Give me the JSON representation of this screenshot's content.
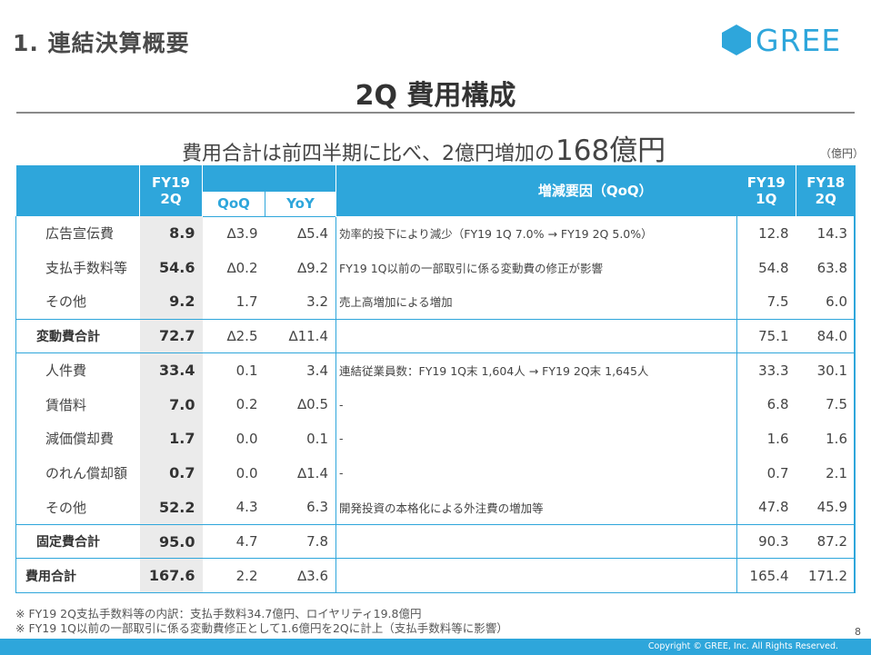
{
  "header": {
    "section_title": "1. 連結決算概要",
    "logo_text": "GREE",
    "page_title": "2Q 費用構成"
  },
  "subtitle": {
    "lead": "費用合計は前四半期に比べ、2億円増加の",
    "value": "168億円"
  },
  "unit": "（億円）",
  "table": {
    "headers": {
      "fy": "FY19\n2Q",
      "qoq": "QoQ",
      "yoy": "YoY",
      "reason": "増減要因（QoQ）",
      "fy19_1q": "FY19\n1Q",
      "fy18_2q": "FY18\n2Q"
    },
    "rows": [
      {
        "kind": "item",
        "label": "広告宣伝費",
        "fy19_2q": "8.9",
        "qoq": "∆3.9",
        "yoy": "∆5.4",
        "reason": "効率的投下により減少（FY19 1Q 7.0% → FY19 2Q 5.0%）",
        "fy19_1q": "12.8",
        "fy18_2q": "14.3"
      },
      {
        "kind": "item",
        "label": "支払手数料等",
        "fy19_2q": "54.6",
        "qoq": "∆0.2",
        "yoy": "∆9.2",
        "reason": "FY19 1Q以前の一部取引に係る変動費の修正が影響",
        "fy19_1q": "54.8",
        "fy18_2q": "63.8"
      },
      {
        "kind": "item",
        "label": "その他",
        "fy19_2q": "9.2",
        "qoq": "1.7",
        "yoy": "3.2",
        "reason": "売上高増加による増加",
        "fy19_1q": "7.5",
        "fy18_2q": "6.0"
      },
      {
        "kind": "subtotal",
        "label": "変動費合計",
        "fy19_2q": "72.7",
        "qoq": "∆2.5",
        "yoy": "∆11.4",
        "reason": "",
        "fy19_1q": "75.1",
        "fy18_2q": "84.0"
      },
      {
        "kind": "item",
        "label": "人件費",
        "fy19_2q": "33.4",
        "qoq": "0.1",
        "yoy": "3.4",
        "reason": "連結従業員数：FY19 1Q末 1,604人 → FY19 2Q末 1,645人",
        "fy19_1q": "33.3",
        "fy18_2q": "30.1"
      },
      {
        "kind": "item",
        "label": "賃借料",
        "fy19_2q": "7.0",
        "qoq": "0.2",
        "yoy": "∆0.5",
        "reason": "-",
        "fy19_1q": "6.8",
        "fy18_2q": "7.5"
      },
      {
        "kind": "item",
        "label": "減価償却費",
        "fy19_2q": "1.7",
        "qoq": "0.0",
        "yoy": "0.1",
        "reason": "-",
        "fy19_1q": "1.6",
        "fy18_2q": "1.6"
      },
      {
        "kind": "item",
        "label": "のれん償却額",
        "fy19_2q": "0.7",
        "qoq": "0.0",
        "yoy": "∆1.4",
        "reason": "-",
        "fy19_1q": "0.7",
        "fy18_2q": "2.1"
      },
      {
        "kind": "item",
        "label": "その他",
        "fy19_2q": "52.2",
        "qoq": "4.3",
        "yoy": "6.3",
        "reason": "開発投資の本格化による外注費の増加等",
        "fy19_1q": "47.8",
        "fy18_2q": "45.9"
      },
      {
        "kind": "subtotal",
        "label": "固定費合計",
        "fy19_2q": "95.0",
        "qoq": "4.7",
        "yoy": "7.8",
        "reason": "",
        "fy19_1q": "90.3",
        "fy18_2q": "87.2"
      },
      {
        "kind": "total",
        "label": "費用合計",
        "fy19_2q": "167.6",
        "qoq": "2.2",
        "yoy": "∆3.6",
        "reason": "",
        "fy19_1q": "165.4",
        "fy18_2q": "171.2"
      }
    ]
  },
  "notes": [
    "※  FY19 2Q支払手数料等の内訳：支払手数料34.7億円、ロイヤリティ19.8億円",
    "※  FY19 1Q以前の一部取引に係る変動費修正として1.6億円を2Qに計上（支払手数料等に影響）"
  ],
  "page_number": "8",
  "footer": {
    "copyright": "Copyright © GREE, Inc. All Rights Reserved.",
    "color": "#2ea6db"
  },
  "colors": {
    "accent": "#2ea6db",
    "highlight_column": "#ebebeb"
  }
}
